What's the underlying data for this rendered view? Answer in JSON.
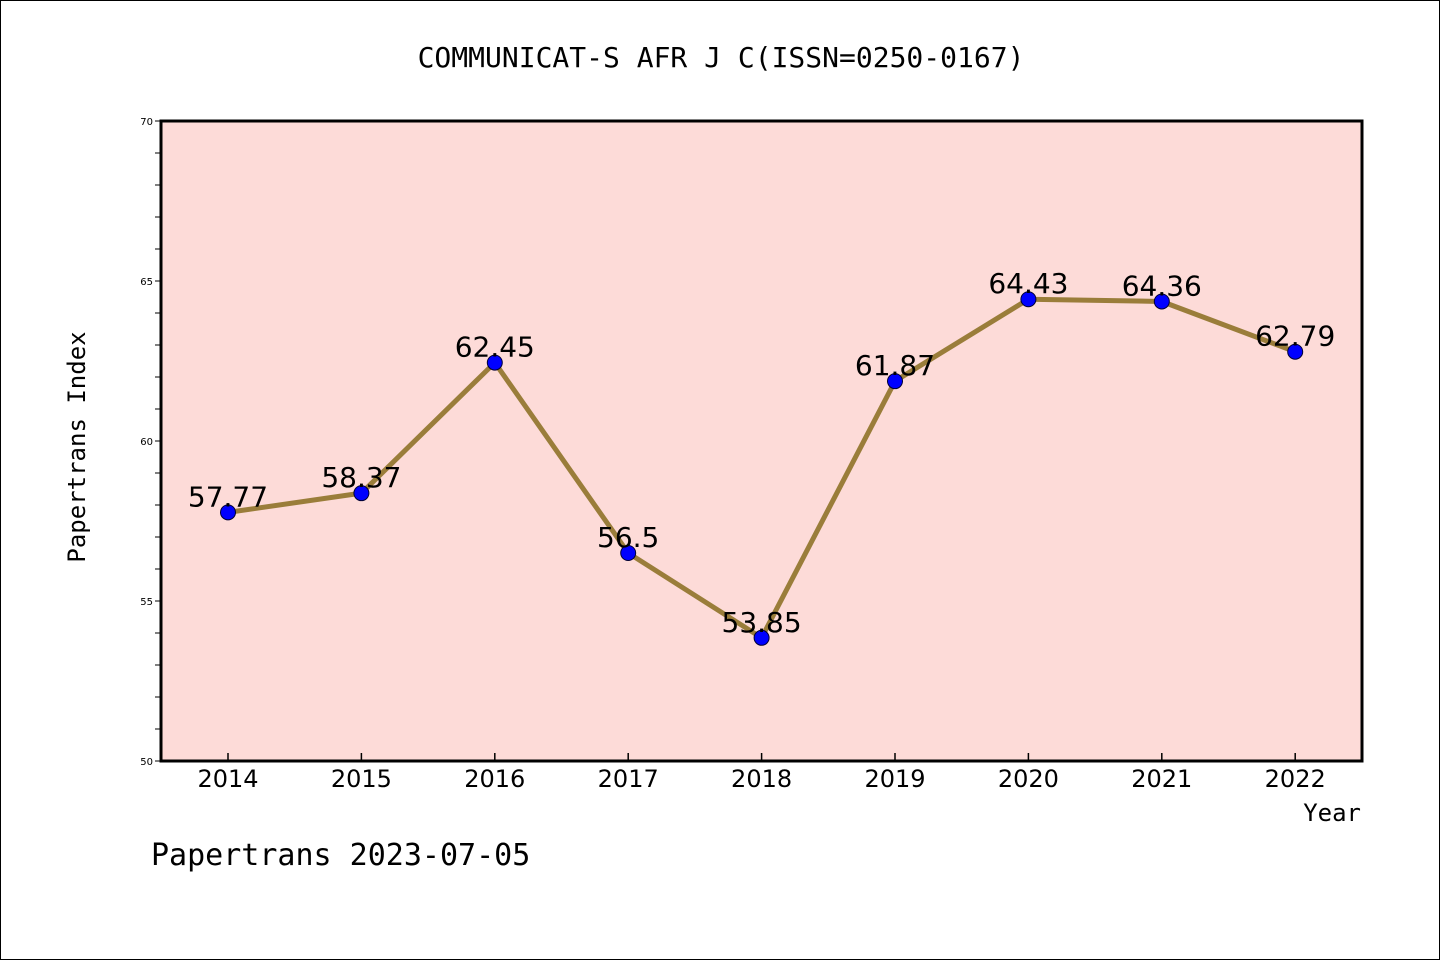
{
  "chart_data": {
    "type": "line",
    "title": "COMMUNICAT-S AFR J C(ISSN=0250-0167)",
    "xlabel": "Year",
    "ylabel": "Papertrans Index",
    "categories": [
      "2014",
      "2015",
      "2016",
      "2017",
      "2018",
      "2019",
      "2020",
      "2021",
      "2022"
    ],
    "values": [
      57.77,
      58.37,
      62.45,
      56.5,
      53.85,
      61.87,
      64.43,
      64.36,
      62.79
    ],
    "data_labels": [
      "57.77",
      "58.37",
      "62.45",
      "56.5",
      "53.85",
      "61.87",
      "64.43",
      "64.36",
      "62.79"
    ],
    "ylim": [
      50,
      70
    ],
    "y_major_ticks": [
      50,
      55,
      60,
      65,
      70
    ],
    "y_tick_labels": [
      "50",
      "55",
      "60",
      "65",
      "70"
    ],
    "y_minor_step": 1,
    "grid": false,
    "footer": "Papertrans 2023-07-05",
    "colors": {
      "plot_background": "#fddbd8",
      "line": "#9a7d3a",
      "marker": "#0000ff",
      "axis": "#000000"
    }
  }
}
